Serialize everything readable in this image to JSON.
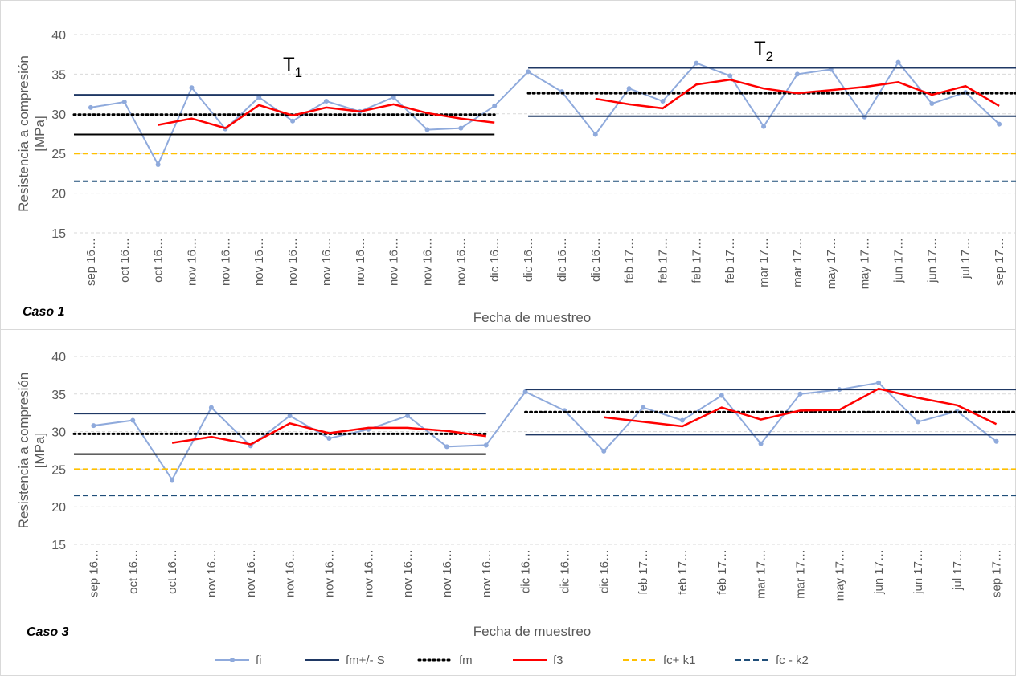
{
  "chart_data": [
    {
      "type": "line",
      "corner_label": "Caso 1",
      "xlabel": "Fecha de muestreo",
      "ylabel": [
        "Resistencia a compresión",
        "[MPa]"
      ],
      "ylim": [
        15,
        40
      ],
      "yticks": [
        15,
        20,
        25,
        30,
        35,
        40
      ],
      "grid": true,
      "annotations": [
        {
          "text": "T",
          "sub": "1",
          "at": 6
        },
        {
          "text": "T",
          "sub": "2",
          "at": 20
        }
      ],
      "categories": [
        "sep 16…",
        "oct 16…",
        "oct 16…",
        "nov 16…",
        "nov 16…",
        "nov 16…",
        "nov 16…",
        "nov 16…",
        "nov 16…",
        "nov 16…",
        "nov 16…",
        "nov 16…",
        "dic 16…",
        "dic 16…",
        "dic 16…",
        "dic 16…",
        "feb 17…",
        "feb 17…",
        "feb 17…",
        "feb 17…",
        "mar 17…",
        "mar 17…",
        "may 17…",
        "may 17…",
        "jun 17…",
        "jun 17…",
        "jul 17…",
        "sep 17…"
      ],
      "series": [
        {
          "color": "#8faadc",
          "marker": true,
          "values": [
            30.8,
            31.5,
            23.6,
            33.3,
            28.1,
            32.1,
            29.1,
            31.6,
            30.3,
            32.1,
            28.0,
            28.2,
            31.0,
            35.3,
            32.8,
            27.4,
            33.2,
            31.6,
            36.4,
            34.8,
            28.4,
            35.0,
            35.6,
            29.6,
            36.5,
            31.3,
            32.7,
            28.7
          ]
        },
        {
          "color": "#1f3864",
          "segments": [
            {
              "value": 32.4,
              "start": 0,
              "end": 12
            },
            {
              "value": 27.4,
              "start": 0,
              "end": 12,
              "color": "#000000"
            },
            {
              "value": 35.8,
              "start": 13,
              "end": 27
            },
            {
              "value": 29.7,
              "start": 13,
              "end": 27
            }
          ]
        },
        {
          "color": "#000000",
          "dash": "dot",
          "segments": [
            {
              "value": 29.9,
              "start": 0,
              "end": 12
            },
            {
              "value": 32.6,
              "start": 13,
              "end": 27
            }
          ]
        },
        {
          "color": "#ff0000",
          "values": [
            null,
            null,
            28.6,
            29.4,
            28.2,
            31.1,
            29.8,
            30.8,
            30.3,
            31.2,
            30.1,
            29.4,
            28.9,
            null,
            null,
            31.9,
            31.2,
            30.7,
            33.7,
            34.3,
            33.2,
            32.6,
            33.0,
            33.4,
            34.0,
            32.4,
            33.5,
            31.0
          ]
        },
        {
          "color": "#ffc000",
          "dash": "dash",
          "segments": [
            {
              "value": 25.0,
              "start": 0,
              "end": 27
            }
          ]
        },
        {
          "color": "#1f4e79",
          "dash": "dash",
          "segments": [
            {
              "value": 21.5,
              "start": 0,
              "end": 27
            }
          ]
        }
      ]
    },
    {
      "type": "line",
      "corner_label": "Caso 3",
      "xlabel": "Fecha de muestreo",
      "ylabel": [
        "Resistencia a compresión",
        "[MPa]"
      ],
      "ylim": [
        15,
        40
      ],
      "yticks": [
        15,
        20,
        25,
        30,
        35,
        40
      ],
      "grid": true,
      "categories": [
        "sep 16…",
        "oct 16…",
        "oct 16…",
        "nov 16…",
        "nov 16…",
        "nov 16…",
        "nov 16…",
        "nov 16…",
        "nov 16…",
        "nov 16…",
        "nov 16…",
        "dic 16…",
        "dic 16…",
        "dic 16…",
        "feb 17…",
        "feb 17…",
        "feb 17…",
        "mar 17…",
        "mar 17…",
        "may 17…",
        "jun 17…",
        "jun 17…",
        "jul 17…",
        "sep 17…"
      ],
      "series": [
        {
          "name": "fi",
          "color": "#8faadc",
          "marker": true,
          "values": [
            30.8,
            31.5,
            23.6,
            33.2,
            28.1,
            32.1,
            29.1,
            30.3,
            32.1,
            28.0,
            28.2,
            35.3,
            32.8,
            27.4,
            33.2,
            31.5,
            34.8,
            28.4,
            35.0,
            35.6,
            36.5,
            31.3,
            32.7,
            28.7
          ]
        },
        {
          "name": "fm+/- S",
          "color": "#1f3864",
          "segments": [
            {
              "value": 32.4,
              "start": 0,
              "end": 10
            },
            {
              "value": 27.0,
              "start": 0,
              "end": 10,
              "color": "#000000"
            },
            {
              "value": 35.6,
              "start": 11,
              "end": 23
            },
            {
              "value": 29.6,
              "start": 11,
              "end": 23
            }
          ]
        },
        {
          "name": "fm",
          "color": "#000000",
          "dash": "dot",
          "segments": [
            {
              "value": 29.7,
              "start": 0,
              "end": 10
            },
            {
              "value": 32.6,
              "start": 11,
              "end": 23
            }
          ]
        },
        {
          "name": "f3",
          "color": "#ff0000",
          "values": [
            null,
            null,
            28.5,
            29.3,
            28.3,
            31.1,
            29.8,
            30.5,
            30.5,
            30.1,
            29.4,
            null,
            null,
            31.9,
            31.3,
            30.7,
            33.2,
            31.6,
            32.8,
            32.9,
            35.7,
            34.5,
            33.5,
            31.0
          ]
        },
        {
          "name": "fc+ k1",
          "color": "#ffc000",
          "dash": "dash",
          "segments": [
            {
              "value": 25.0,
              "start": 0,
              "end": 23
            }
          ]
        },
        {
          "name": "fc - k2",
          "color": "#1f4e79",
          "dash": "dash",
          "segments": [
            {
              "value": 21.5,
              "start": 0,
              "end": 23
            }
          ]
        }
      ]
    }
  ]
}
